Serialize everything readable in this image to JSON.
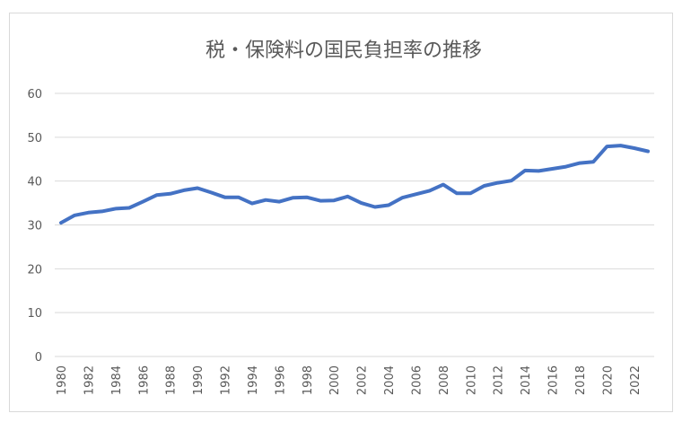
{
  "chart_data": {
    "type": "line",
    "title": "税・保険料の国民負担率の推移",
    "xlabel": "",
    "ylabel": "",
    "ylim": [
      0,
      60
    ],
    "y_ticks": [
      0,
      10,
      20,
      30,
      40,
      50,
      60
    ],
    "x_tick_labels": [
      "1980",
      "1982",
      "1984",
      "1986",
      "1988",
      "1990",
      "1992",
      "1994",
      "1996",
      "1998",
      "2000",
      "2002",
      "2004",
      "2006",
      "2008",
      "2010",
      "2012",
      "2014",
      "2016",
      "2018",
      "2020",
      "2022"
    ],
    "grid": true,
    "legend": "none",
    "line_color": "#4472C4",
    "series": [
      {
        "x": [
          1980,
          1981,
          1982,
          1983,
          1984,
          1985,
          1986,
          1987,
          1988,
          1989,
          1990,
          1991,
          1992,
          1993,
          1994,
          1995,
          1996,
          1997,
          1998,
          1999,
          2000,
          2001,
          2002,
          2003,
          2004,
          2005,
          2006,
          2007,
          2008,
          2009,
          2010,
          2011,
          2012,
          2013,
          2014,
          2015,
          2016,
          2017,
          2018,
          2019,
          2020,
          2021,
          2022,
          2023
        ],
        "values": [
          30.5,
          32.2,
          32.8,
          33.1,
          33.7,
          33.9,
          35.3,
          36.8,
          37.1,
          37.9,
          38.4,
          37.4,
          36.3,
          36.3,
          34.9,
          35.7,
          35.3,
          36.2,
          36.3,
          35.5,
          35.6,
          36.5,
          35.0,
          34.1,
          34.5,
          36.2,
          37.0,
          37.8,
          39.2,
          37.2,
          37.2,
          38.9,
          39.6,
          40.1,
          42.4,
          42.3,
          42.8,
          43.3,
          44.1,
          44.4,
          47.9,
          48.1,
          47.5,
          46.8
        ]
      }
    ]
  }
}
